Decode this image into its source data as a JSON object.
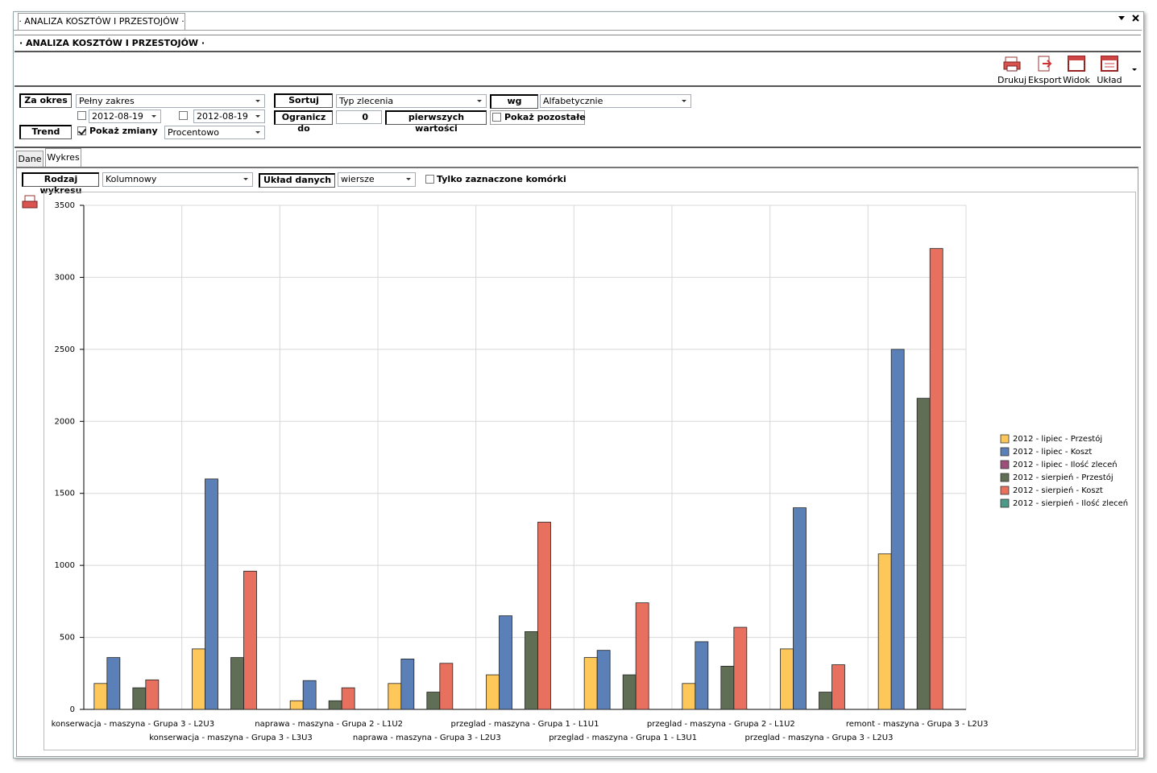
{
  "window": {
    "tab_title": "· ANALIZA KOSZTÓW I PRZESTOJÓW ·",
    "header": "· ANALIZA KOSZTÓW I PRZESTOJÓW ·"
  },
  "toolbar": [
    "Drukuj",
    "Eksport",
    "Widok",
    "Układ"
  ],
  "filters": {
    "period_label": "Za okres",
    "period": "Pełny zakres",
    "date_from": "2012-08-19",
    "date_to": "2012-08-19",
    "trend_label": "Trend",
    "show_changes": "Pokaż zmiany",
    "trend_mode": "Procentowo",
    "sort_label": "Sortuj",
    "sort_by": "Typ zlecenia",
    "by_label": "wg",
    "order": "Alfabetycznie",
    "limit_label": "Ogranicz do",
    "limit": "0",
    "limit_suffix": "pierwszych wartości",
    "show_rest": "Pokaż pozostałe"
  },
  "tabs": [
    "Dane",
    "Wykres"
  ],
  "chart_options": {
    "chart_type_label": "Rodzaj wykresu",
    "chart_type": "Kolumnowy",
    "layout_label": "Układ danych",
    "layout": "wiersze",
    "only_selected": "Tylko zaznaczone komórki"
  },
  "chart_data": {
    "type": "bar",
    "grid": true,
    "legend": "right",
    "categories": [
      "konserwacja - maszyna - Grupa 3 - L2U3",
      "konserwacja - maszyna - Grupa 3 - L3U3",
      "naprawa - maszyna - Grupa 2 - L1U2",
      "naprawa - maszyna - Grupa 3 - L2U3",
      "przeglad - maszyna - Grupa 1 - L1U1",
      "przeglad - maszyna - Grupa 1 - L3U1",
      "przeglad - maszyna - Grupa 2 - L1U2",
      "przeglad - maszyna - Grupa 3 - L2U3",
      "remont - maszyna - Grupa 3 - L2U3"
    ],
    "series": [
      {
        "name": "2012 - lipiec - Przestój",
        "color": "#fdc75a",
        "values": [
          180,
          420,
          60,
          180,
          240,
          360,
          180,
          420,
          1080
        ]
      },
      {
        "name": "2012 - lipiec - Koszt",
        "color": "#5b80b8",
        "values": [
          360,
          1600,
          200,
          350,
          650,
          410,
          470,
          1400,
          2500
        ]
      },
      {
        "name": "2012 - lipiec - Ilość zleceń",
        "color": "#9b4f7a",
        "values": [
          0,
          0,
          0,
          0,
          0,
          0,
          0,
          0,
          0
        ]
      },
      {
        "name": "2012 - sierpień - Przestój",
        "color": "#5f6e55",
        "values": [
          150,
          360,
          60,
          120,
          540,
          240,
          300,
          120,
          2160
        ]
      },
      {
        "name": "2012 - sierpień - Koszt",
        "color": "#e8705f",
        "values": [
          205,
          960,
          150,
          320,
          1300,
          740,
          570,
          310,
          3200
        ]
      },
      {
        "name": "2012 - sierpień - Ilość zleceń",
        "color": "#4e9a88",
        "values": [
          0,
          0,
          0,
          0,
          0,
          0,
          0,
          0,
          0
        ]
      }
    ],
    "ylim": [
      0,
      3500
    ],
    "yticks": [
      0,
      500,
      1000,
      1500,
      2000,
      2500,
      3000,
      3500
    ]
  }
}
